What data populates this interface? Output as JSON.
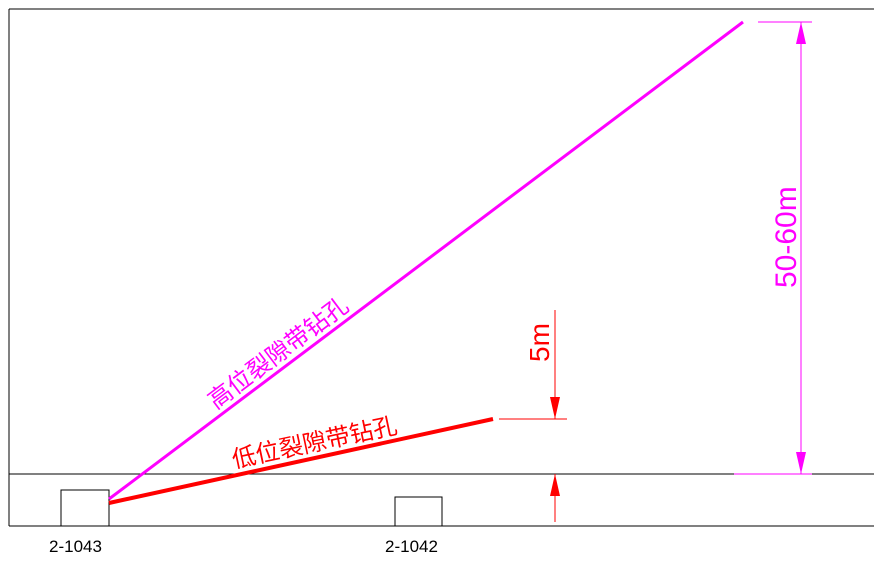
{
  "diagram": {
    "high_borehole_label": "高位裂隙带钻孔",
    "low_borehole_label": "低位裂隙带钻孔",
    "high_dimension_label": "50-60m",
    "low_dimension_label": "5m",
    "roadway_left_label": "2-1043",
    "roadway_right_label": "2-1042",
    "colors": {
      "high": "#ff00ff",
      "low": "#ff0000",
      "line": "#000000"
    }
  }
}
